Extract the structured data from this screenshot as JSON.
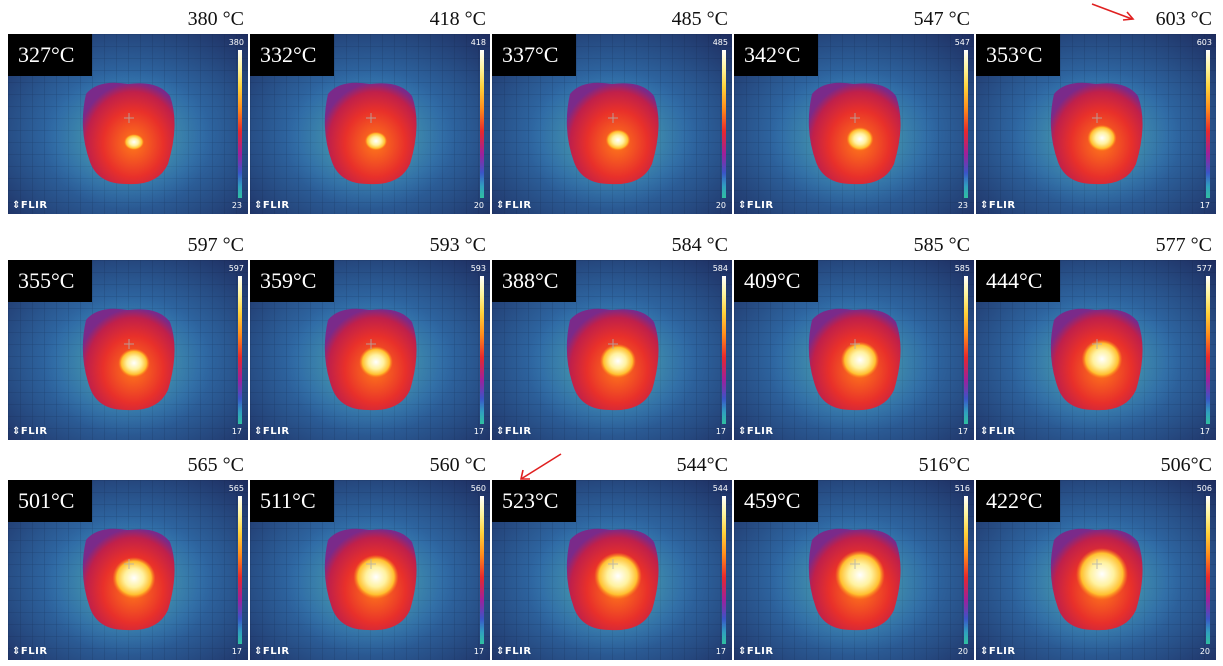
{
  "rows": [
    [
      {
        "max_label": "380 °C",
        "cam_label": "327°C",
        "scale_max": "380",
        "scale_min": "23"
      },
      {
        "max_label": "418 °C",
        "cam_label": "332°C",
        "scale_max": "418",
        "scale_min": "20"
      },
      {
        "max_label": "485 °C",
        "cam_label": "337°C",
        "scale_max": "485",
        "scale_min": "20"
      },
      {
        "max_label": "547 °C",
        "cam_label": "342°C",
        "scale_max": "547",
        "scale_min": "23"
      },
      {
        "max_label": "603 °C",
        "cam_label": "353°C",
        "scale_max": "603",
        "scale_min": "17"
      }
    ],
    [
      {
        "max_label": "597 °C",
        "cam_label": "355°C",
        "scale_max": "597",
        "scale_min": "17"
      },
      {
        "max_label": "593 °C",
        "cam_label": "359°C",
        "scale_max": "593",
        "scale_min": "17"
      },
      {
        "max_label": "584 °C",
        "cam_label": "388°C",
        "scale_max": "584",
        "scale_min": "17"
      },
      {
        "max_label": "585 °C",
        "cam_label": "409°C",
        "scale_max": "585",
        "scale_min": "17"
      },
      {
        "max_label": "577 °C",
        "cam_label": "444°C",
        "scale_max": "577",
        "scale_min": "17"
      }
    ],
    [
      {
        "max_label": "565 °C",
        "cam_label": "501°C",
        "scale_max": "565",
        "scale_min": "17"
      },
      {
        "max_label": "560 °C",
        "cam_label": "511°C",
        "scale_max": "560",
        "scale_min": "17"
      },
      {
        "max_label": "544°C",
        "cam_label": "523°C",
        "scale_max": "544",
        "scale_min": "17"
      },
      {
        "max_label": "516°C",
        "cam_label": "459°C",
        "scale_max": "516",
        "scale_min": "20"
      },
      {
        "max_label": "506°C",
        "cam_label": "422°C",
        "scale_max": "506",
        "scale_min": "20"
      }
    ]
  ],
  "brand": "FLIR",
  "colors": {
    "arrow": "#e02020",
    "label_bg": "#000000"
  }
}
